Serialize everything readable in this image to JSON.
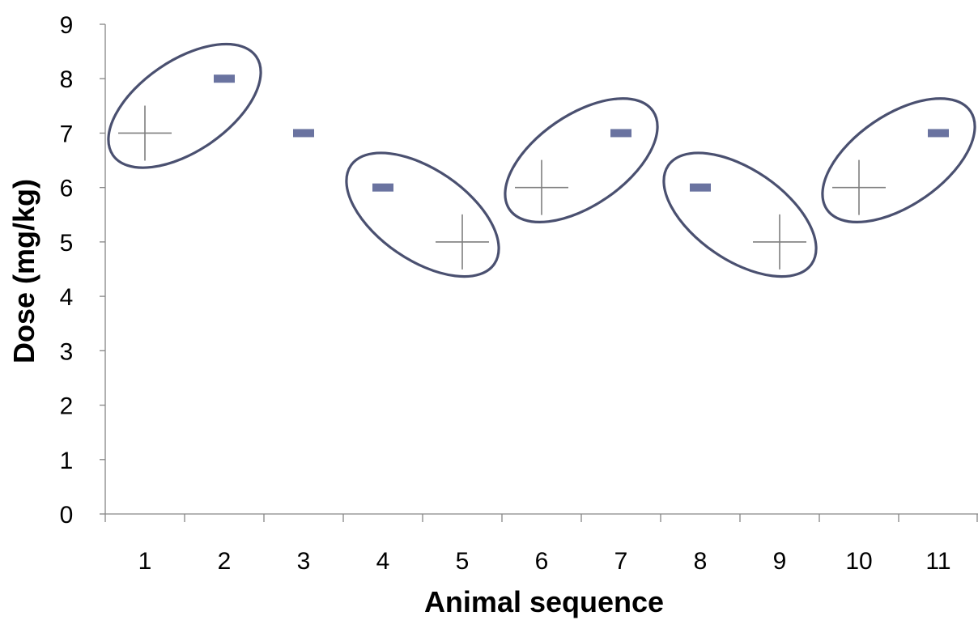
{
  "chart_data": {
    "type": "scatter",
    "title": "",
    "xlabel": "Animal sequence",
    "ylabel": "Dose (mg/kg)",
    "ylim": [
      0,
      9
    ],
    "y_ticks": [
      "0",
      "1",
      "2",
      "3",
      "4",
      "5",
      "6",
      "7",
      "8",
      "9"
    ],
    "categories": [
      "1",
      "2",
      "3",
      "4",
      "5",
      "6",
      "7",
      "8",
      "9",
      "10",
      "11"
    ],
    "grid": false,
    "legend": "none",
    "series": [
      {
        "marker": "plus",
        "color": "#7f7f7f",
        "points": [
          {
            "x": "1",
            "y": 7
          },
          {
            "x": "5",
            "y": 5
          },
          {
            "x": "6",
            "y": 6
          },
          {
            "x": "9",
            "y": 5
          },
          {
            "x": "10",
            "y": 6
          }
        ]
      },
      {
        "marker": "dash",
        "color": "#6a73a0",
        "points": [
          {
            "x": "2",
            "y": 8
          },
          {
            "x": "3",
            "y": 7
          },
          {
            "x": "4",
            "y": 6
          },
          {
            "x": "7",
            "y": 7
          },
          {
            "x": "8",
            "y": 6
          },
          {
            "x": "11",
            "y": 7
          }
        ]
      }
    ],
    "highlights": [
      {
        "from": {
          "x": "1",
          "y": 7
        },
        "to": {
          "x": "2",
          "y": 8
        }
      },
      {
        "from": {
          "x": "4",
          "y": 6
        },
        "to": {
          "x": "5",
          "y": 5
        }
      },
      {
        "from": {
          "x": "6",
          "y": 6
        },
        "to": {
          "x": "7",
          "y": 7
        }
      },
      {
        "from": {
          "x": "8",
          "y": 6
        },
        "to": {
          "x": "9",
          "y": 5
        }
      },
      {
        "from": {
          "x": "10",
          "y": 6
        },
        "to": {
          "x": "11",
          "y": 7
        }
      }
    ],
    "highlight_color": "#4a5070"
  }
}
